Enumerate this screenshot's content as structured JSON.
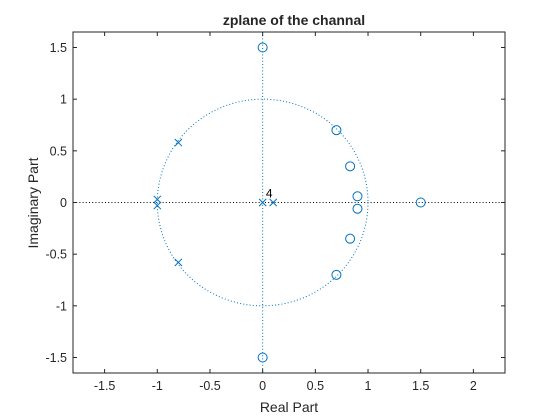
{
  "chart_data": {
    "type": "scatter",
    "title": "zplane of the channal",
    "xlabel": "Real Part",
    "ylabel": "Imaginary Part",
    "xlim": [
      -1.8,
      2.3
    ],
    "ylim": [
      -1.65,
      1.65
    ],
    "xticks": [
      -1.5,
      -1,
      -0.5,
      0,
      0.5,
      1,
      1.5,
      2
    ],
    "xtick_labels": [
      "-1.5",
      "-1",
      "-0.5",
      "0",
      "0.5",
      "1",
      "1.5",
      "2"
    ],
    "yticks": [
      -1.5,
      -1,
      -0.5,
      0,
      0.5,
      1,
      1.5
    ],
    "ytick_labels": [
      "-1.5",
      "-1",
      "-0.5",
      "0",
      "0.5",
      "1",
      "1.5"
    ],
    "grid": false,
    "unit_circle": true,
    "zeros": [
      {
        "x": 0,
        "y": 1.5
      },
      {
        "x": 0,
        "y": -1.5
      },
      {
        "x": 0.7,
        "y": 0.7
      },
      {
        "x": 0.7,
        "y": -0.7
      },
      {
        "x": 0.83,
        "y": 0.35
      },
      {
        "x": 0.83,
        "y": -0.35
      },
      {
        "x": 0.9,
        "y": 0.06
      },
      {
        "x": 0.9,
        "y": -0.06
      },
      {
        "x": 1.5,
        "y": 0
      }
    ],
    "poles": [
      {
        "x": -0.8,
        "y": 0.58
      },
      {
        "x": -0.8,
        "y": -0.58
      },
      {
        "x": -1,
        "y": 0.03
      },
      {
        "x": -1,
        "y": -0.03
      },
      {
        "x": 0,
        "y": 0
      },
      {
        "x": 0.1,
        "y": 0
      }
    ],
    "annotations": [
      {
        "text": "4",
        "x": 0.03,
        "y": 0.05
      }
    ],
    "colors": {
      "marker": "#0072BD",
      "axes": "#262626"
    }
  }
}
